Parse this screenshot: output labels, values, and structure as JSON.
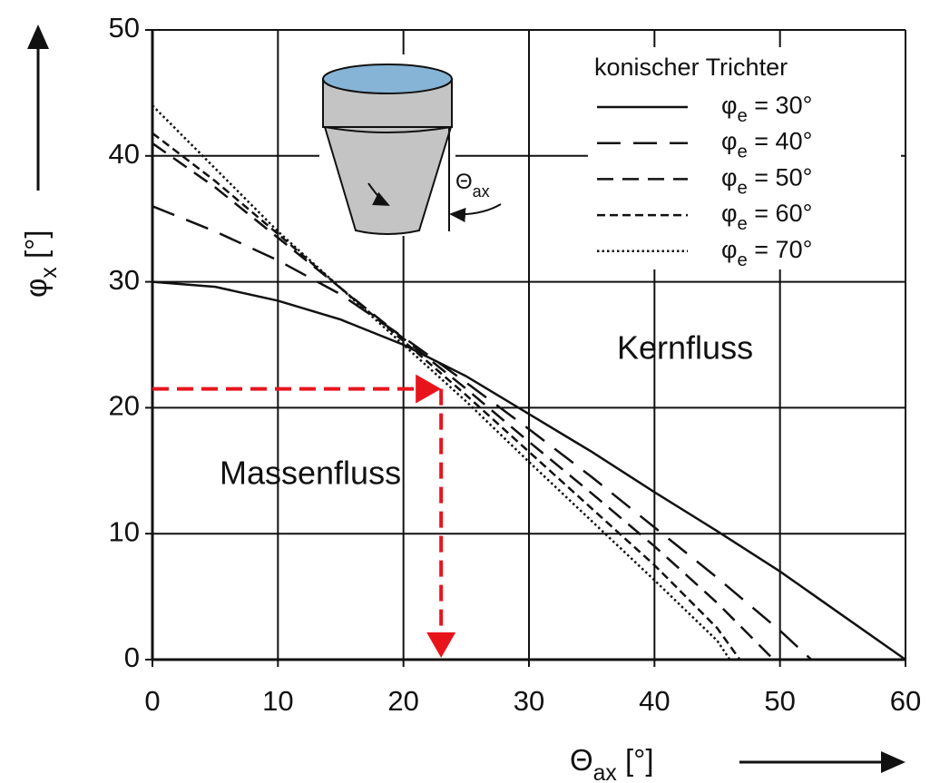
{
  "chart_data": {
    "type": "line",
    "xlabel": "Θax [°]",
    "ylabel": "φx [°]",
    "legend_title": "konischer Trichter",
    "legend": "top-right",
    "annotations": [
      "Kernfluss",
      "Massenfluss"
    ],
    "inset_label": "Θax",
    "xlim": [
      0,
      60
    ],
    "ylim": [
      0,
      50
    ],
    "xticks": [
      0,
      10,
      20,
      30,
      40,
      50,
      60
    ],
    "yticks": [
      0,
      10,
      20,
      30,
      40,
      50
    ],
    "grid": true,
    "reference_point": {
      "x": 23,
      "y": 21.5,
      "color": "#e8141c"
    },
    "series": [
      {
        "name": "φe = 30°",
        "color": "#111111",
        "style": "solid",
        "x": [
          0,
          5,
          10,
          15,
          20,
          25,
          30,
          35,
          40,
          45,
          50,
          55,
          60
        ],
        "values": [
          30,
          29.6,
          28.5,
          27,
          25,
          22.5,
          19.5,
          16.5,
          13.3,
          10.2,
          7,
          3.5,
          0
        ]
      },
      {
        "name": "φe = 40°",
        "color": "#111111",
        "style": "long-dash",
        "x": [
          0,
          5,
          10,
          15,
          20,
          25,
          30,
          35,
          40,
          45,
          50,
          52.5
        ],
        "values": [
          36,
          34,
          31.7,
          29,
          25.6,
          22,
          18.3,
          14.5,
          10.5,
          6.5,
          2.3,
          0
        ]
      },
      {
        "name": "φe = 50°",
        "color": "#111111",
        "style": "medium-dash",
        "x": [
          0,
          5,
          10,
          15,
          20,
          25,
          30,
          35,
          40,
          45,
          49.5
        ],
        "values": [
          41,
          37.5,
          33.5,
          29.5,
          25.5,
          21.5,
          17.3,
          13.2,
          9,
          4.5,
          0
        ]
      },
      {
        "name": "φe = 60°",
        "color": "#111111",
        "style": "short-dash",
        "x": [
          0,
          5,
          10,
          15,
          20,
          25,
          30,
          35,
          40,
          45,
          46.8
        ],
        "values": [
          41.8,
          38,
          33.8,
          29.5,
          25.3,
          21,
          16.5,
          12,
          7.5,
          2.5,
          0
        ]
      },
      {
        "name": "φe = 70°",
        "color": "#111111",
        "style": "dotted",
        "x": [
          0,
          5,
          10,
          15,
          20,
          25,
          30,
          35,
          40,
          45,
          46
        ],
        "values": [
          44,
          39,
          34,
          29.5,
          25,
          20.5,
          15.7,
          11,
          6.3,
          1.5,
          0
        ]
      }
    ]
  }
}
